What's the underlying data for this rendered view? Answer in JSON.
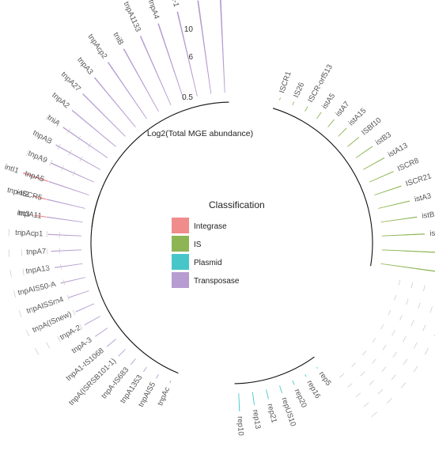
{
  "chart_data": {
    "type": "circular-bar",
    "axis_title": "Log2(Total MGE abundance)",
    "y_ticks": [
      "0.5",
      "6",
      "10"
    ],
    "legend": {
      "title": "Classification",
      "items": [
        {
          "label": "Integrase",
          "color": "#F08C8C"
        },
        {
          "label": "IS",
          "color": "#8DB554"
        },
        {
          "label": "Plasmid",
          "color": "#47C6C9"
        },
        {
          "label": "Transposase",
          "color": "#B69CD0"
        }
      ]
    },
    "groups": [
      {
        "class": "Integrase",
        "color": "#F08C8C",
        "group_label": "",
        "labels": [
          "int3",
          "int2",
          "intI1"
        ],
        "values": [
          4.8,
          5.2,
          6.8
        ]
      },
      {
        "class": "IS",
        "color": "#8DB554",
        "group_label": "",
        "labels": [
          "ISCR1",
          "IS26",
          "ISCR-orf513",
          "istA5",
          "istA7",
          "istA15",
          "ISBf10",
          "istB3",
          "istA13",
          "ISCR8",
          "ISCR21",
          "istA3",
          "istB1",
          "istA",
          "istB",
          "IS91"
        ],
        "values": [
          0.3,
          0.4,
          0.6,
          0.8,
          1.0,
          1.2,
          1.5,
          2.0,
          2.4,
          2.6,
          2.8,
          3.2,
          3.6,
          4.2,
          5.3,
          7.6
        ]
      },
      {
        "class": "Plasmid",
        "color": "#47C6C9",
        "group_label": "",
        "labels": [
          "rep5",
          "rep16",
          "rep20",
          "repUS10",
          "rep21",
          "rep13",
          "rep10"
        ],
        "values": [
          0.2,
          0.3,
          0.5,
          0.8,
          1.0,
          1.3,
          1.8
        ]
      },
      {
        "class": "Transposase",
        "color": "#B69CD0",
        "group_label": "",
        "labels": [
          "tnpAc",
          "tnpAIS5",
          "tnpA1353",
          "tnpA-IS683",
          "tnpA(ISRSB101-1)",
          "tnpA1-IS1068",
          "tnpA-3",
          "tnpA-2",
          "tnpA(ISnew)",
          "tnpAISSm4",
          "tnpAIS50-A",
          "tnpA13",
          "tnpA7",
          "tnpAcp1",
          "tnpA11",
          "tnp-ISCR5",
          "tnpA5",
          "tnpA9",
          "tnpAB",
          "tniA",
          "tnpA2",
          "tnpA27",
          "tnpA3",
          "tnpAcp2",
          "tniB",
          "tnpA1133",
          "tnpA4",
          "tnpA-1",
          "tnpA1",
          "tnpA"
        ],
        "values": [
          0.3,
          0.5,
          0.6,
          0.8,
          1.0,
          1.2,
          1.5,
          1.8,
          2.0,
          2.2,
          2.5,
          2.8,
          3.0,
          3.3,
          3.6,
          3.9,
          4.2,
          4.6,
          5.0,
          5.3,
          5.6,
          5.9,
          6.3,
          6.7,
          7.0,
          7.4,
          7.9,
          8.5,
          9.2,
          11.5
        ]
      }
    ]
  }
}
